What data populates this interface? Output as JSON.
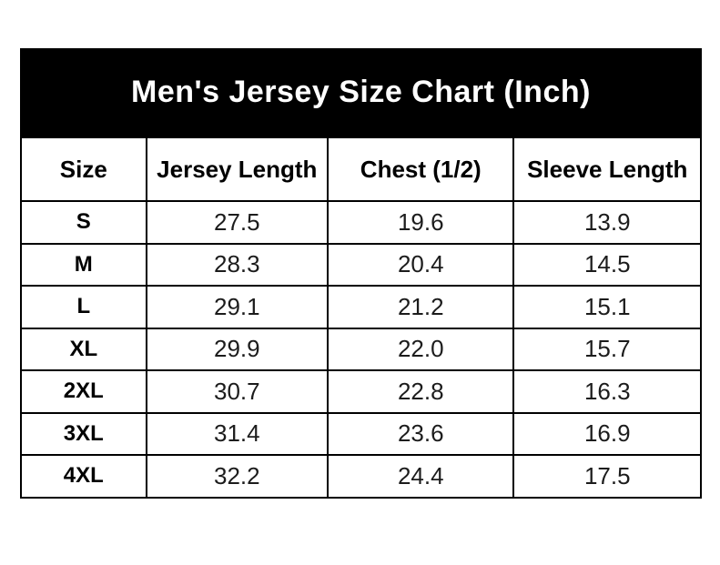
{
  "title": "Men's Jersey Size Chart (Inch)",
  "table": {
    "headers": [
      "Size",
      "Jersey Length",
      "Chest (1/2)",
      "Sleeve Length"
    ],
    "rows": [
      {
        "cells": [
          "S",
          "27.5",
          "19.6",
          "13.9"
        ]
      },
      {
        "cells": [
          "M",
          "28.3",
          "20.4",
          "14.5"
        ]
      },
      {
        "cells": [
          "L",
          "29.1",
          "21.2",
          "15.1"
        ]
      },
      {
        "cells": [
          "XL",
          "29.9",
          "22.0",
          "15.7"
        ]
      },
      {
        "cells": [
          "2XL",
          "30.7",
          "22.8",
          "16.3"
        ]
      },
      {
        "cells": [
          "3XL",
          "31.4",
          "23.6",
          "16.9"
        ]
      },
      {
        "cells": [
          "4XL",
          "32.2",
          "24.4",
          "17.5"
        ]
      }
    ]
  },
  "colors": {
    "banner_background": "#000000",
    "banner_text": "#ffffff",
    "grid_border": "#000000",
    "cell_background": "#ffffff",
    "cell_text": "#1c1c1c"
  },
  "chart_data": {
    "type": "table",
    "title": "Men's Jersey Size Chart (Inch)",
    "units": "inch",
    "columns": [
      "Size",
      "Jersey Length",
      "Chest (1/2)",
      "Sleeve Length"
    ],
    "rows": [
      [
        "S",
        27.5,
        19.6,
        13.9
      ],
      [
        "M",
        28.3,
        20.4,
        14.5
      ],
      [
        "L",
        29.1,
        21.2,
        15.1
      ],
      [
        "XL",
        29.9,
        22.0,
        15.7
      ],
      [
        "2XL",
        30.7,
        22.8,
        16.3
      ],
      [
        "3XL",
        31.4,
        23.6,
        16.9
      ],
      [
        "4XL",
        32.2,
        24.4,
        17.5
      ]
    ]
  }
}
